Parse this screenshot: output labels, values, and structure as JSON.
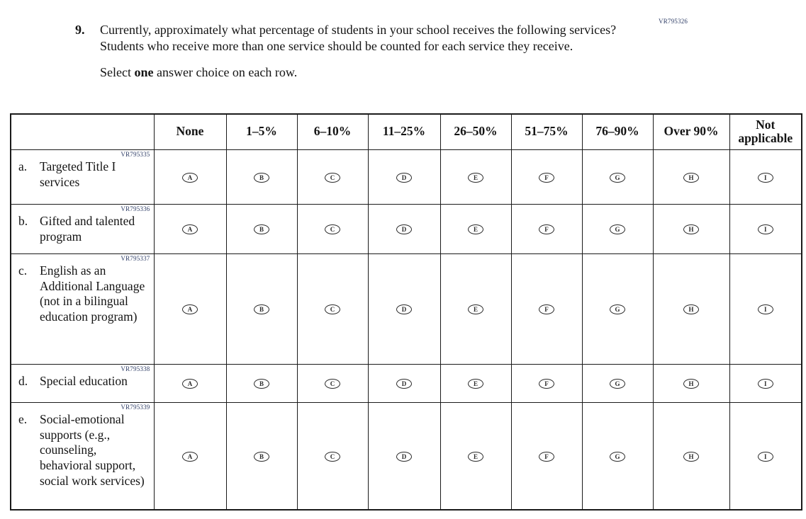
{
  "page": {
    "vr_code_top": "VR795326",
    "question_number": "9.",
    "question_text": "Currently, approximately what percentage of students in your school receives the following services? Students who receive more than one service should be counted for each service they receive.",
    "instruction": {
      "prefix": "Select ",
      "bold": "one",
      "suffix": " answer choice on each row."
    }
  },
  "colors": {
    "vr_code": "#2e3d66",
    "border": "#1a1a1a",
    "text": "#141414"
  },
  "table": {
    "columns": [
      "None",
      "1–5%",
      "6–10%",
      "11–25%",
      "26–50%",
      "51–75%",
      "76–90%",
      "Over 90%",
      "Not applicable"
    ],
    "option_letters": [
      "A",
      "B",
      "C",
      "D",
      "E",
      "F",
      "G",
      "H",
      "I"
    ],
    "rows": [
      {
        "vr_code": "VR795335",
        "letter": "a.",
        "label": "Targeted Title I services"
      },
      {
        "vr_code": "VR795336",
        "letter": "b.",
        "label": "Gifted and talented program"
      },
      {
        "vr_code": "VR795337",
        "letter": "c.",
        "label": "English as an Additional Language (not in a bilingual education program)"
      },
      {
        "vr_code": "VR795338",
        "letter": "d.",
        "label": "Special education"
      },
      {
        "vr_code": "VR795339",
        "letter": "e.",
        "label": "Social-emotional supports (e.g., counseling, behavioral support, social work services)"
      }
    ]
  }
}
